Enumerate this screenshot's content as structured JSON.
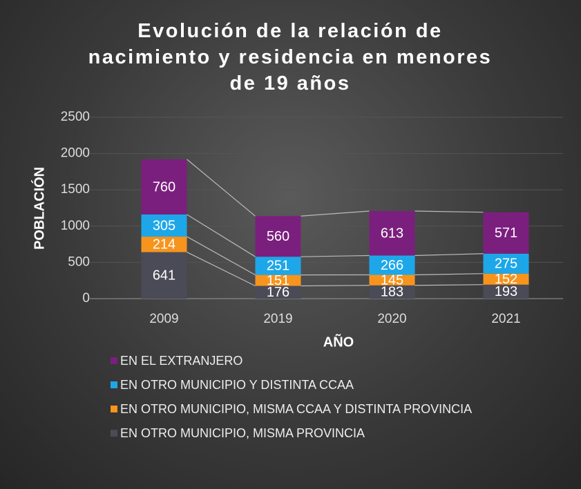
{
  "chart_data": {
    "type": "stacked_bar",
    "title": "Evolución de la relación de nacimiento y residencia en menores de 19 años",
    "xlabel": "AÑO",
    "ylabel": "POBLACIÓN",
    "categories": [
      "2009",
      "2019",
      "2020",
      "2021"
    ],
    "series": [
      {
        "name": "EN OTRO MUNICIPIO, MISMA PROVINCIA",
        "color": "#4b4b57",
        "values": [
          641,
          176,
          183,
          193
        ]
      },
      {
        "name": "EN OTRO MUNICIPIO, MISMA CCAA Y DISTINTA PROVINCIA",
        "color": "#f7941d",
        "values": [
          214,
          151,
          145,
          152
        ]
      },
      {
        "name": "EN OTRO MUNICIPIO Y DISTINTA CCAA",
        "color": "#1ea7e8",
        "values": [
          305,
          251,
          266,
          275
        ]
      },
      {
        "name": "EN EL EXTRANJERO",
        "color": "#7b1f7e",
        "values": [
          760,
          560,
          613,
          571
        ]
      }
    ],
    "ylim": [
      0,
      2500
    ],
    "yticks": [
      0,
      500,
      1000,
      1500,
      2000,
      2500
    ],
    "grid": true,
    "series_lines": true
  }
}
